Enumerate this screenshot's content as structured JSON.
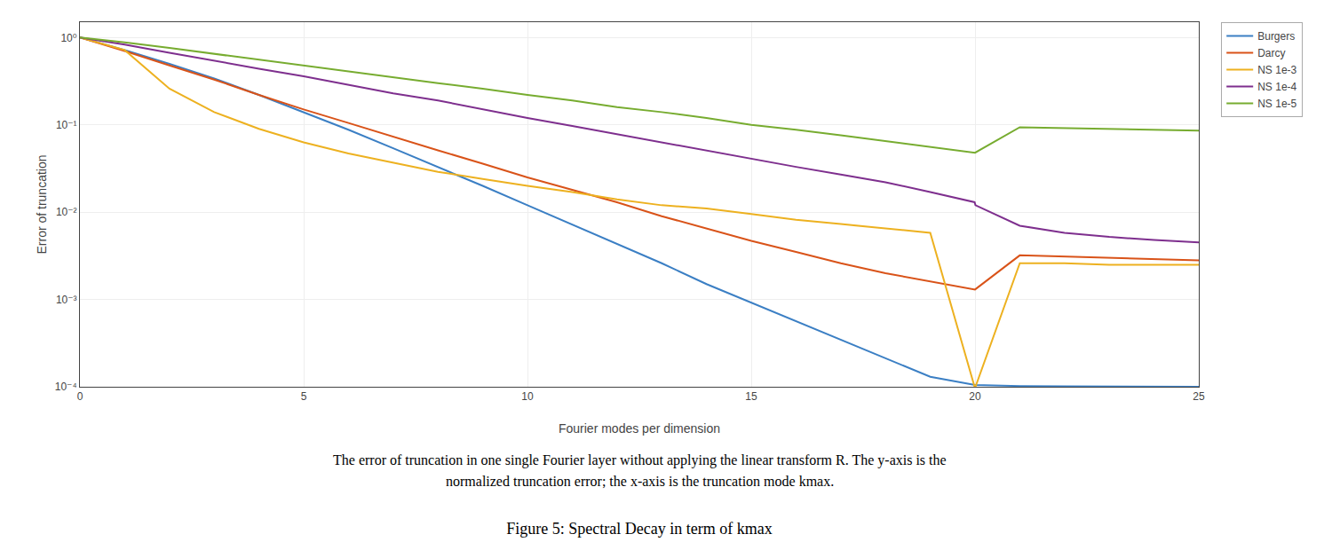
{
  "chart_data": {
    "type": "line",
    "title": "Figure 5: Spectral Decay in term of kmax",
    "annotations": [
      "The error of truncation in one single Fourier layer without applying the linear transform R. The y-axis is the",
      "normalized truncation error; the x-axis is the truncation mode kmax."
    ],
    "xlabel": "Fourier modes per dimension",
    "ylabel": "Error of truncation",
    "log": "y",
    "xlim": [
      0,
      25
    ],
    "ylim": [
      0.0001,
      1.5
    ],
    "xticks": [
      0,
      5,
      10,
      15,
      20,
      25
    ],
    "yticks": [
      {
        "value": 0.0001,
        "label": "10⁻⁴"
      },
      {
        "value": 0.001,
        "label": "10⁻³"
      },
      {
        "value": 0.01,
        "label": "10⁻²"
      },
      {
        "value": 0.1,
        "label": "10⁻¹"
      },
      {
        "value": 1,
        "label": "10⁰"
      }
    ],
    "grid": true,
    "legend": "upper right",
    "series": [
      {
        "name": "Burgers",
        "color": "#3B7FC4",
        "x": [
          0,
          1,
          2,
          3,
          4,
          5,
          6,
          7,
          8,
          9,
          10,
          11,
          12,
          13,
          14,
          15,
          16,
          17,
          18,
          19,
          20,
          21,
          22,
          23,
          24,
          25
        ],
        "values": [
          1.0,
          0.72,
          0.5,
          0.34,
          0.22,
          0.14,
          0.088,
          0.054,
          0.033,
          0.02,
          0.012,
          0.0072,
          0.0043,
          0.0026,
          0.0015,
          0.00092,
          0.00056,
          0.00034,
          0.00021,
          0.00013,
          0.000105,
          0.000102,
          0.000101,
          0.0001005,
          0.0001002,
          0.0001
        ]
      },
      {
        "name": "Darcy",
        "color": "#D95319",
        "x": [
          0,
          1,
          2,
          3,
          4,
          5,
          6,
          7,
          8,
          9,
          10,
          11,
          12,
          13,
          14,
          15,
          16,
          17,
          18,
          19,
          20,
          21,
          22,
          23,
          24,
          25
        ],
        "values": [
          1.0,
          0.7,
          0.48,
          0.33,
          0.22,
          0.15,
          0.105,
          0.073,
          0.051,
          0.036,
          0.025,
          0.018,
          0.013,
          0.009,
          0.0065,
          0.0047,
          0.0035,
          0.0026,
          0.002,
          0.0016,
          0.0013,
          0.0032,
          0.0031,
          0.003,
          0.0029,
          0.0028
        ]
      },
      {
        "name": "NS 1e-3",
        "color": "#EDB120",
        "x": [
          0,
          1,
          2,
          3,
          4,
          5,
          6,
          7,
          8,
          9,
          10,
          11,
          12,
          13,
          14,
          15,
          16,
          17,
          18,
          19,
          19.99,
          20.01,
          21,
          22,
          23,
          24,
          25
        ],
        "values": [
          1.0,
          0.72,
          0.26,
          0.14,
          0.09,
          0.063,
          0.047,
          0.037,
          0.029,
          0.024,
          0.02,
          0.017,
          0.014,
          0.012,
          0.011,
          0.0095,
          0.0082,
          0.0073,
          0.0065,
          0.0058,
          0.0001,
          0.0001,
          0.0026,
          0.0026,
          0.0025,
          0.0025,
          0.0025
        ]
      },
      {
        "name": "NS 1e-4",
        "color": "#7E2F8E",
        "x": [
          0,
          1,
          2,
          3,
          4,
          5,
          6,
          7,
          8,
          9,
          10,
          11,
          12,
          13,
          14,
          15,
          16,
          17,
          18,
          19,
          19.99,
          20.01,
          21,
          22,
          23,
          24,
          25
        ],
        "values": [
          1.0,
          0.83,
          0.67,
          0.54,
          0.44,
          0.36,
          0.29,
          0.23,
          0.19,
          0.15,
          0.12,
          0.097,
          0.078,
          0.063,
          0.051,
          0.041,
          0.033,
          0.027,
          0.022,
          0.017,
          0.013,
          0.012,
          0.007,
          0.0058,
          0.0052,
          0.0048,
          0.0045
        ]
      },
      {
        "name": "NS 1e-5",
        "color": "#77AC30",
        "x": [
          0,
          1,
          2,
          3,
          4,
          5,
          6,
          7,
          8,
          9,
          10,
          11,
          12,
          13,
          14,
          15,
          16,
          17,
          18,
          19,
          20,
          21,
          22,
          23,
          24,
          25
        ],
        "values": [
          1.0,
          0.88,
          0.76,
          0.65,
          0.56,
          0.48,
          0.41,
          0.35,
          0.3,
          0.26,
          0.22,
          0.19,
          0.16,
          0.14,
          0.12,
          0.1,
          0.088,
          0.076,
          0.065,
          0.056,
          0.048,
          0.094,
          0.092,
          0.09,
          0.088,
          0.086
        ]
      }
    ]
  }
}
